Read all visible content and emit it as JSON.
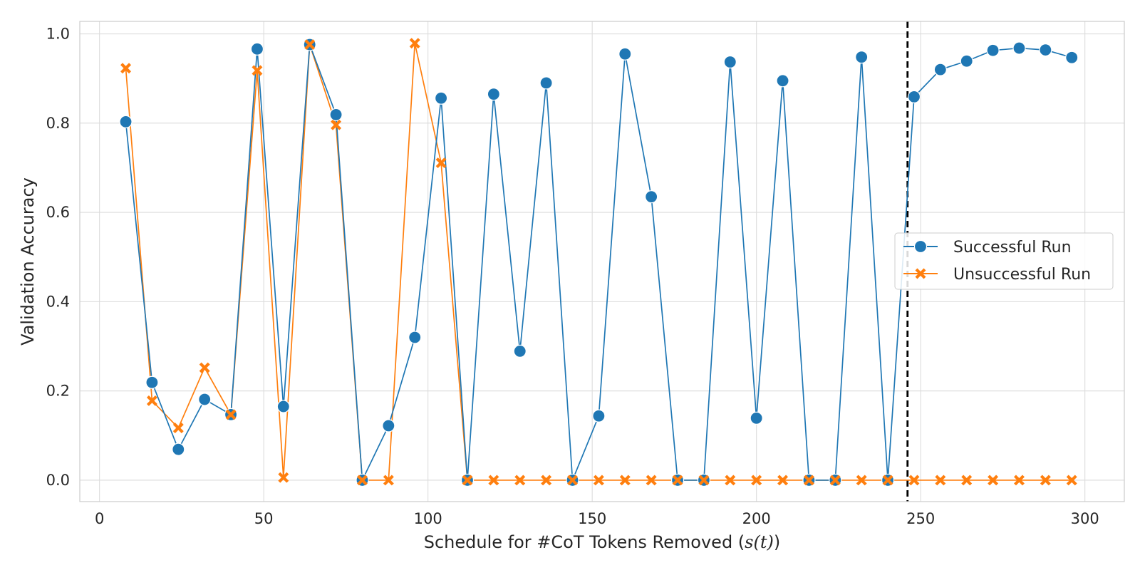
{
  "chart_data": {
    "type": "line",
    "title": "",
    "xlabel": "Schedule for #CoT Tokens Removed (",
    "xlabel_math": "s(t)",
    "xlabel_suffix": ")",
    "ylabel": "Validation Accuracy",
    "xlim": [
      -6,
      312
    ],
    "ylim": [
      -0.048,
      1.028
    ],
    "xticks": [
      0,
      50,
      100,
      150,
      200,
      250,
      300
    ],
    "yticks": [
      0.0,
      0.2,
      0.4,
      0.6,
      0.8,
      1.0
    ],
    "ytick_labels": [
      "0.0",
      "0.2",
      "0.4",
      "0.6",
      "0.8",
      "1.0"
    ],
    "grid": true,
    "legend_position": "center-right",
    "vline": {
      "x": 246,
      "style": "dashed",
      "color": "#000000"
    },
    "x": [
      8,
      16,
      24,
      32,
      40,
      48,
      56,
      64,
      72,
      80,
      88,
      96,
      104,
      112,
      120,
      128,
      136,
      144,
      152,
      160,
      168,
      176,
      184,
      192,
      200,
      208,
      216,
      224,
      232,
      240,
      248,
      256,
      264,
      272,
      280,
      288,
      296
    ],
    "series": [
      {
        "name": "Successful Run",
        "marker": "circle",
        "color": "#1f77b4",
        "values": [
          0.803,
          0.219,
          0.069,
          0.181,
          0.147,
          0.966,
          0.165,
          0.976,
          0.819,
          0.0,
          0.122,
          0.32,
          0.856,
          0.0,
          0.865,
          0.289,
          0.89,
          0.0,
          0.144,
          0.955,
          0.635,
          0.0,
          0.0,
          0.937,
          0.139,
          0.895,
          0.0,
          0.0,
          0.948,
          0.0,
          0.859,
          0.92,
          0.939,
          0.963,
          0.968,
          0.964,
          0.947
        ]
      },
      {
        "name": "Unsuccessful Run",
        "marker": "x",
        "color": "#ff7f0e",
        "values": [
          0.923,
          0.178,
          0.117,
          0.252,
          0.147,
          0.918,
          0.006,
          0.976,
          0.796,
          0.0,
          0.0,
          0.979,
          0.711,
          0.0,
          0.0,
          0.0,
          0.0,
          0.0,
          0.0,
          0.0,
          0.0,
          0.0,
          0.0,
          0.0,
          0.0,
          0.0,
          0.0,
          0.0,
          0.0,
          0.0,
          0.0,
          0.0,
          0.0,
          0.0,
          0.0,
          0.0,
          0.0
        ]
      }
    ]
  }
}
